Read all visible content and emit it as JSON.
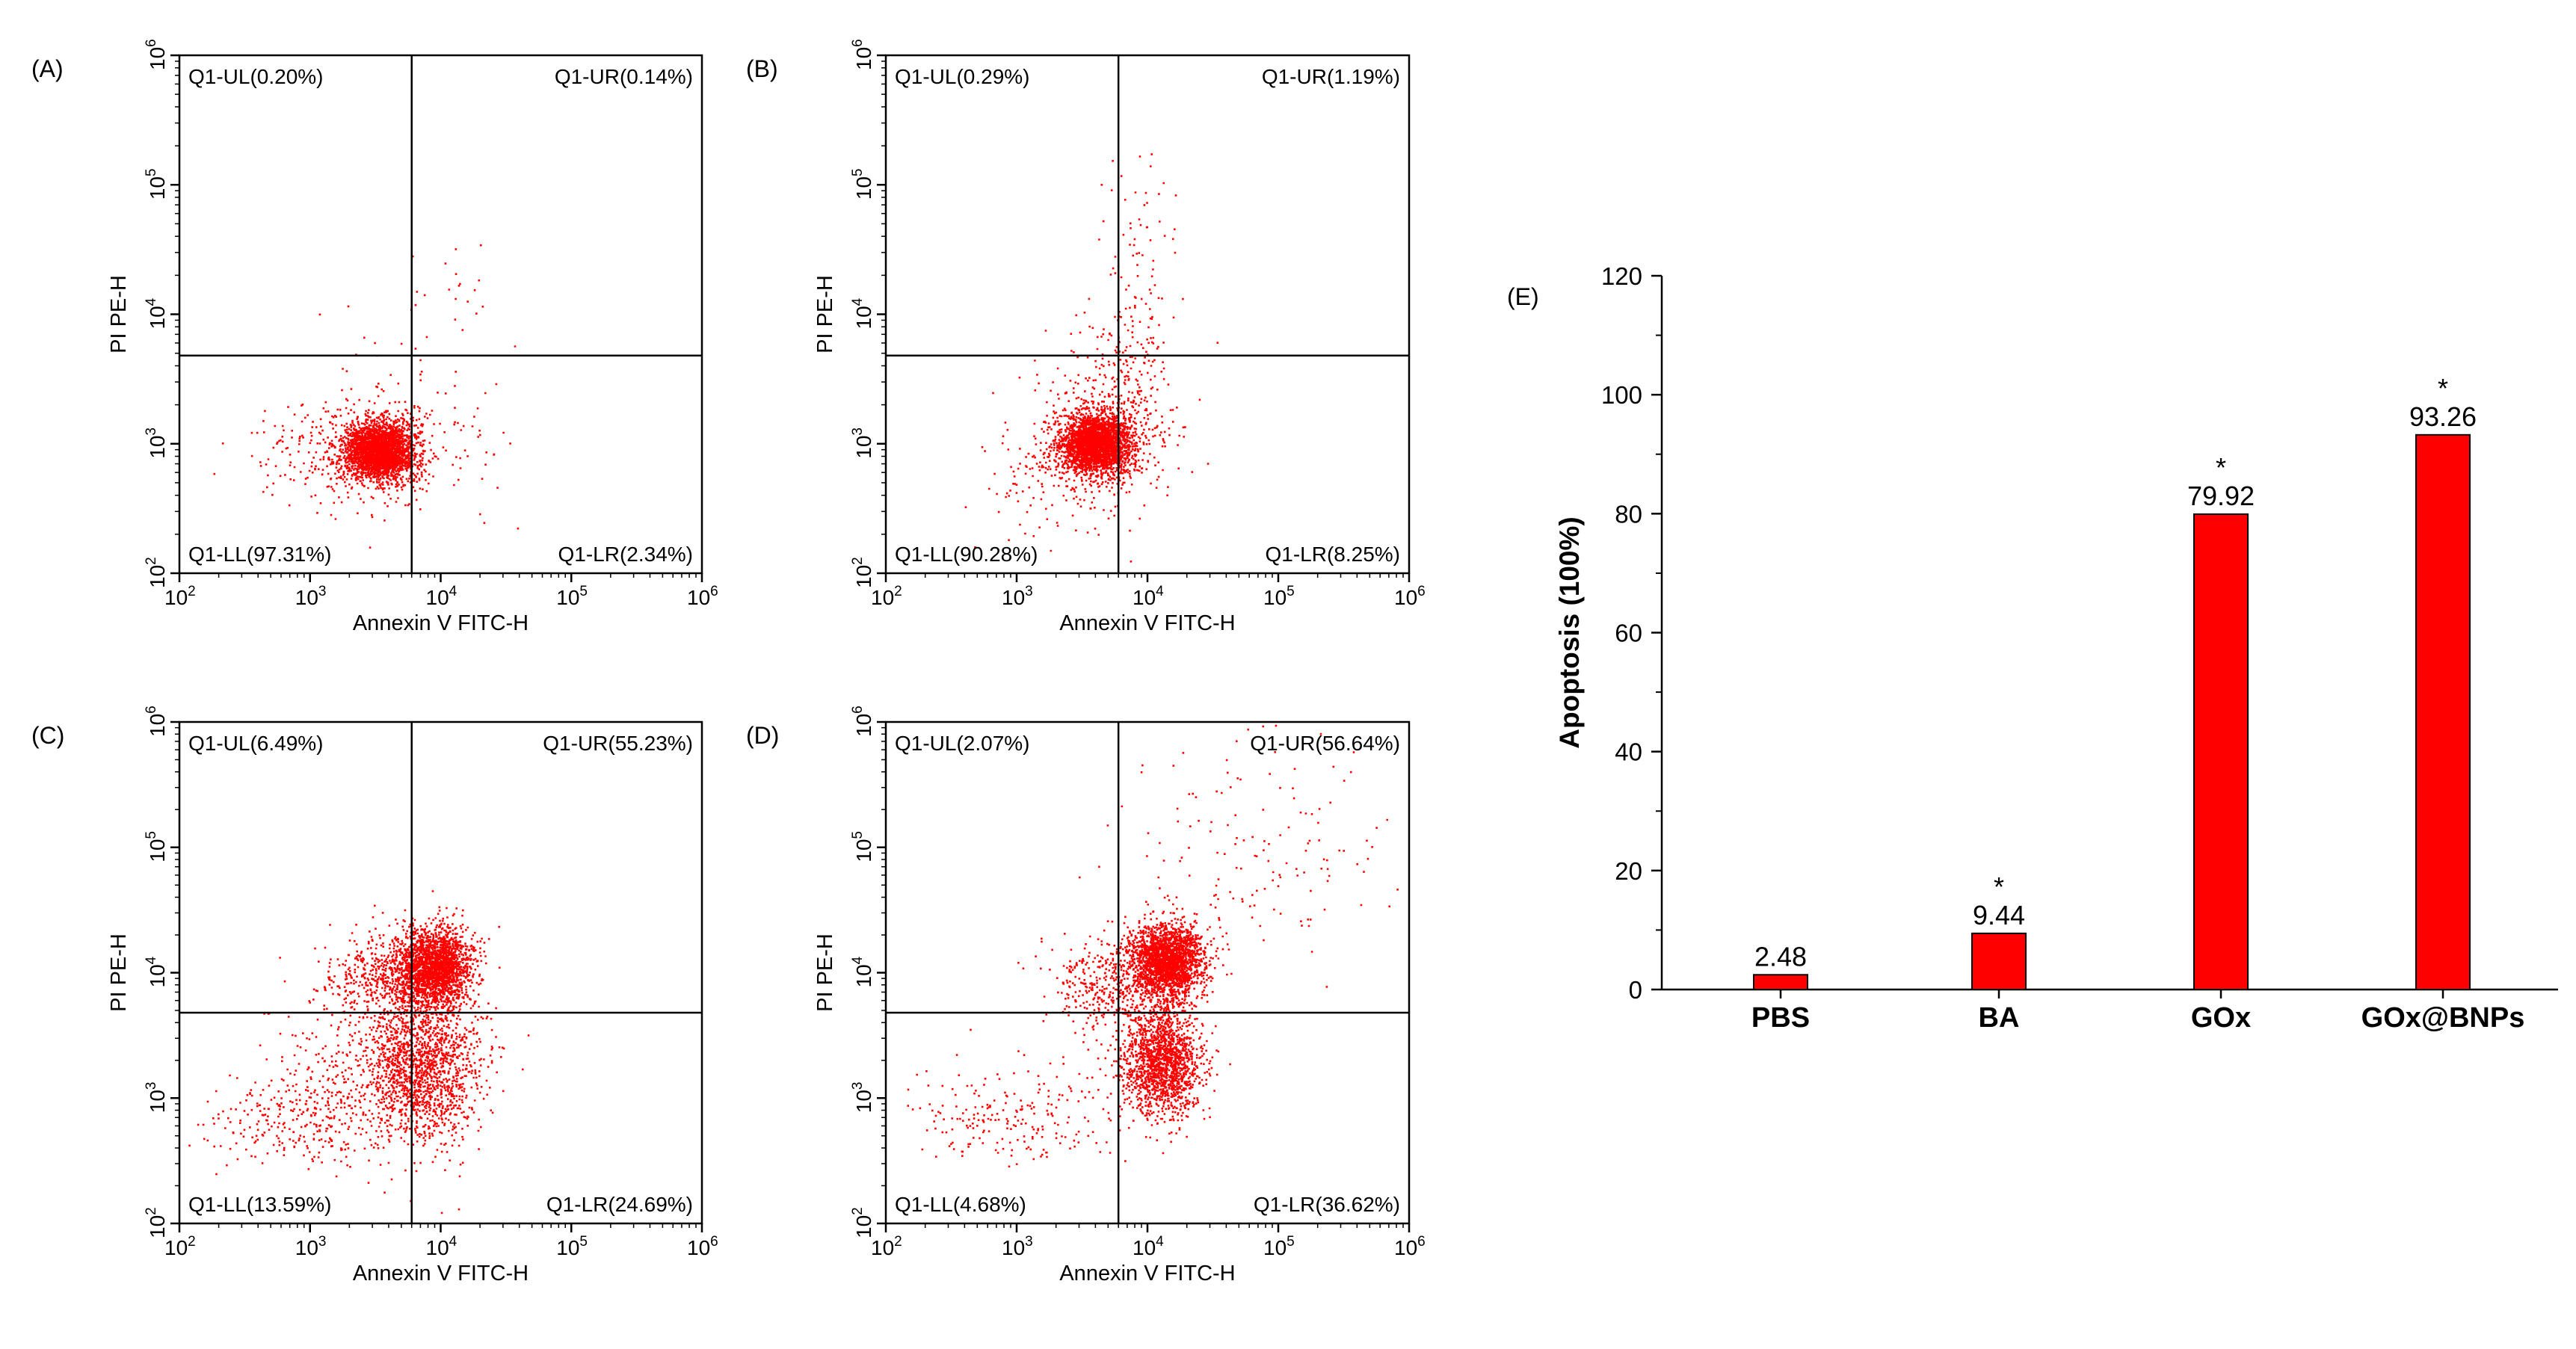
{
  "chart_data": [
    {
      "type": "scatter",
      "panel_label": "(A)",
      "xlabel": "Annexin V FITC-H",
      "ylabel": "PI PE-H",
      "x_scale": "log",
      "y_scale": "log",
      "xlim": [
        100,
        1000000
      ],
      "ylim": [
        100,
        1000000
      ],
      "tick_base": "10",
      "tick_exponents": [
        "2",
        "3",
        "4",
        "5",
        "6"
      ],
      "gate_x": 6000,
      "gate_y": 4800,
      "quadrants": {
        "UL": "Q1-UL(0.20%)",
        "UR": "Q1-UR(0.14%)",
        "LL": "Q1-LL(97.31%)",
        "LR": "Q1-LR(2.34%)"
      },
      "clusters": [
        {
          "cx": 3.52,
          "cy": 2.95,
          "sx": 0.13,
          "sy": 0.11,
          "n": 2600
        },
        {
          "cx": 3.35,
          "cy": 2.95,
          "sx": 0.35,
          "sy": 0.2,
          "n": 450
        },
        {
          "cx": 3.75,
          "cy": 3.2,
          "sx": 0.35,
          "sy": 0.4,
          "n": 90
        },
        {
          "cx": 4.05,
          "cy": 4.1,
          "sx": 0.2,
          "sy": 0.35,
          "n": 18
        }
      ]
    },
    {
      "type": "scatter",
      "panel_label": "(B)",
      "xlabel": "Annexin V FITC-H",
      "ylabel": "PI PE-H",
      "x_scale": "log",
      "y_scale": "log",
      "xlim": [
        100,
        1000000
      ],
      "ylim": [
        100,
        1000000
      ],
      "tick_base": "10",
      "tick_exponents": [
        "2",
        "3",
        "4",
        "5",
        "6"
      ],
      "gate_x": 6000,
      "gate_y": 4800,
      "quadrants": {
        "UL": "Q1-UL(0.29%)",
        "UR": "Q1-UR(1.19%)",
        "LL": "Q1-LL(90.28%)",
        "LR": "Q1-LR(8.25%)"
      },
      "clusters": [
        {
          "cx": 3.6,
          "cy": 3.0,
          "sx": 0.14,
          "sy": 0.12,
          "n": 2600
        },
        {
          "cx": 3.75,
          "cy": 3.25,
          "sx": 0.25,
          "sy": 0.35,
          "n": 400
        },
        {
          "cx": 3.3,
          "cy": 2.8,
          "sx": 0.3,
          "sy": 0.25,
          "n": 150
        },
        {
          "cx": 3.95,
          "cy": 4.3,
          "sx": 0.18,
          "sy": 0.45,
          "n": 90
        }
      ]
    },
    {
      "type": "scatter",
      "panel_label": "(C)",
      "xlabel": "Annexin V FITC-H",
      "ylabel": "PI PE-H",
      "x_scale": "log",
      "y_scale": "log",
      "xlim": [
        100,
        1000000
      ],
      "ylim": [
        100,
        1000000
      ],
      "tick_base": "10",
      "tick_exponents": [
        "2",
        "3",
        "4",
        "5",
        "6"
      ],
      "gate_x": 6000,
      "gate_y": 4800,
      "quadrants": {
        "UL": "Q1-UL(6.49%)",
        "UR": "Q1-UR(55.23%)",
        "LL": "Q1-LL(13.59%)",
        "LR": "Q1-LR(24.69%)"
      },
      "clusters": [
        {
          "cx": 3.95,
          "cy": 4.05,
          "sx": 0.14,
          "sy": 0.16,
          "n": 2200
        },
        {
          "cx": 3.5,
          "cy": 3.95,
          "sx": 0.2,
          "sy": 0.18,
          "n": 400
        },
        {
          "cx": 3.85,
          "cy": 3.25,
          "sx": 0.22,
          "sy": 0.28,
          "n": 1500
        },
        {
          "cx": 2.9,
          "cy": 2.85,
          "sx": 0.38,
          "sy": 0.18,
          "n": 300
        },
        {
          "cx": 3.4,
          "cy": 3.2,
          "sx": 0.35,
          "sy": 0.35,
          "n": 250
        }
      ]
    },
    {
      "type": "scatter",
      "panel_label": "(D)",
      "xlabel": "Annexin V FITC-H",
      "ylabel": "PI PE-H",
      "x_scale": "log",
      "y_scale": "log",
      "xlim": [
        100,
        1000000
      ],
      "ylim": [
        100,
        1000000
      ],
      "tick_base": "10",
      "tick_exponents": [
        "2",
        "3",
        "4",
        "5",
        "6"
      ],
      "gate_x": 6000,
      "gate_y": 4800,
      "quadrants": {
        "UL": "Q1-UL(2.07%)",
        "UR": "Q1-UR(56.64%)",
        "LL": "Q1-LL(4.68%)",
        "LR": "Q1-LR(36.62%)"
      },
      "clusters": [
        {
          "cx": 4.15,
          "cy": 4.1,
          "sx": 0.14,
          "sy": 0.15,
          "n": 2300
        },
        {
          "cx": 4.1,
          "cy": 3.3,
          "sx": 0.15,
          "sy": 0.22,
          "n": 1700
        },
        {
          "cx": 3.7,
          "cy": 3.9,
          "sx": 0.22,
          "sy": 0.2,
          "n": 400
        },
        {
          "cx": 3.0,
          "cy": 2.85,
          "sx": 0.35,
          "sy": 0.18,
          "n": 220
        },
        {
          "cx": 4.9,
          "cy": 5.1,
          "sx": 0.55,
          "sy": 0.5,
          "n": 160
        }
      ]
    },
    {
      "type": "bar",
      "panel_label": "(E)",
      "categories": [
        "PBS",
        "BA",
        "GOx",
        "GOx@BNPs"
      ],
      "values": [
        2.48,
        9.44,
        79.92,
        93.26
      ],
      "data_labels": [
        "2.48",
        "9.44",
        "79.92",
        "93.26"
      ],
      "significance": [
        "",
        "*",
        "*",
        "*"
      ],
      "ylabel": "Apoptosis (100%)",
      "xlabel": "",
      "ylim": [
        0,
        120
      ],
      "yticks": [
        "0",
        "20",
        "40",
        "60",
        "80",
        "100",
        "120"
      ],
      "bar_color": "#ff0000"
    }
  ],
  "colors": {
    "dot": "#ff0000",
    "axis": "#000000"
  }
}
